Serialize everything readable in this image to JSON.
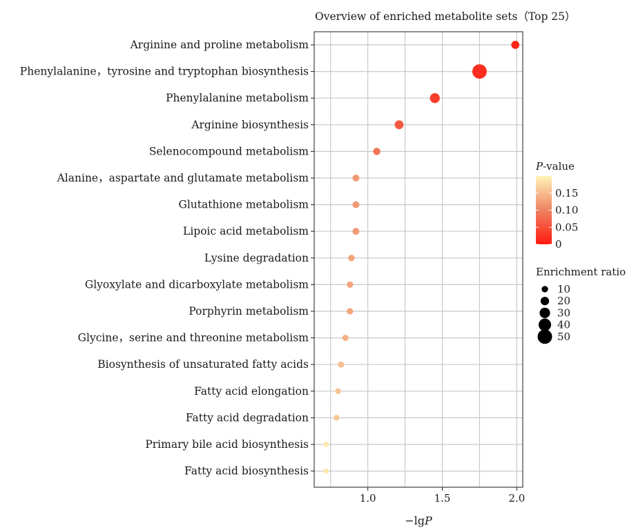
{
  "chart_data": {
    "type": "scatter",
    "title": "Overview of enriched metabolite sets（Top 25）",
    "xlabel": "−lgP",
    "xlabel_main": "−lg",
    "xlabel_italic": "P",
    "ylabel": "",
    "xlim": [
      0.64,
      2.04
    ],
    "xticks": [
      1.0,
      1.5,
      2.0
    ],
    "xtick_labels": [
      "1.0",
      "1.5",
      "2.0"
    ],
    "grid": true,
    "categories": [
      "Arginine and proline metabolism",
      "Phenylalanine，tyrosine and tryptophan biosynthesis",
      "Phenylalanine metabolism",
      "Arginine biosynthesis",
      "Selenocompound metabolism",
      "Alanine，aspartate and glutamate metabolism",
      "Glutathione metabolism",
      "Lipoic acid metabolism",
      "Lysine degradation",
      "Glyoxylate and dicarboxylate metabolism",
      "Porphyrin metabolism",
      "Glycine，serine and threonine metabolism",
      "Biosynthesis of unsaturated fatty acids",
      "Fatty acid elongation",
      "Fatty acid degradation",
      "Primary bile acid biosynthesis",
      "Fatty acid biosynthesis"
    ],
    "points": [
      {
        "x": 1.99,
        "p": 0.01,
        "ratio": 18
      },
      {
        "x": 1.75,
        "p": 0.018,
        "ratio": 50
      },
      {
        "x": 1.45,
        "p": 0.035,
        "ratio": 27
      },
      {
        "x": 1.21,
        "p": 0.062,
        "ratio": 22
      },
      {
        "x": 1.06,
        "p": 0.087,
        "ratio": 14
      },
      {
        "x": 0.92,
        "p": 0.12,
        "ratio": 12
      },
      {
        "x": 0.92,
        "p": 0.12,
        "ratio": 12
      },
      {
        "x": 0.92,
        "p": 0.12,
        "ratio": 12
      },
      {
        "x": 0.89,
        "p": 0.129,
        "ratio": 10
      },
      {
        "x": 0.88,
        "p": 0.132,
        "ratio": 10
      },
      {
        "x": 0.88,
        "p": 0.132,
        "ratio": 10
      },
      {
        "x": 0.85,
        "p": 0.141,
        "ratio": 9
      },
      {
        "x": 0.82,
        "p": 0.151,
        "ratio": 8
      },
      {
        "x": 0.8,
        "p": 0.158,
        "ratio": 7
      },
      {
        "x": 0.79,
        "p": 0.162,
        "ratio": 7
      },
      {
        "x": 0.72,
        "p": 0.19,
        "ratio": 5
      },
      {
        "x": 0.72,
        "p": 0.19,
        "ratio": 4
      }
    ],
    "color_legend": {
      "title_italic": "P",
      "title_rest": "-value",
      "min": 0,
      "max": 0.2,
      "ticks": [
        0.15,
        0.1,
        0.05,
        0
      ],
      "tick_labels": [
        "0.15",
        "0.10",
        "0.05",
        "0"
      ],
      "color_low": "#ff1a0f",
      "color_mid": "#ef8262",
      "color_high": "#fff3b8"
    },
    "size_legend": {
      "title": "Enrichment ratio",
      "values": [
        10,
        20,
        30,
        40,
        50
      ],
      "labels": [
        "10",
        "20",
        "30",
        "40",
        "50"
      ]
    },
    "colors": {
      "grid": "#c8c8c8",
      "axis": "#1a1a1a"
    }
  }
}
